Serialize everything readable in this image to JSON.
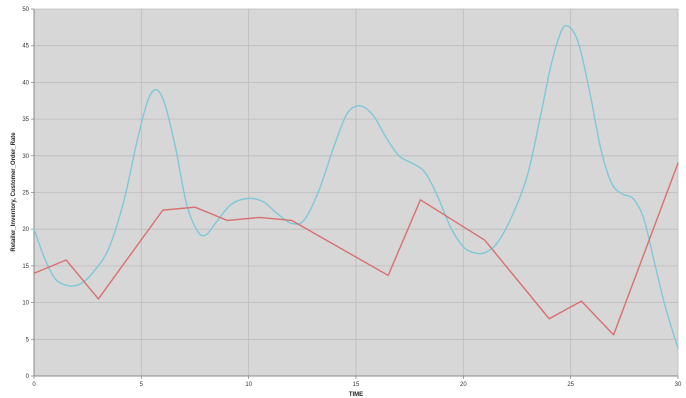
{
  "chart_data": {
    "type": "line",
    "title": "",
    "xlabel": "TIME",
    "ylabel": "Retailer_Inventory, Customer_Order_Rate",
    "xlim": [
      0,
      30
    ],
    "ylim": [
      0,
      50
    ],
    "x_ticks": [
      "0",
      "5",
      "10",
      "15",
      "20",
      "25",
      "30"
    ],
    "y_ticks": [
      "0",
      "5",
      "10",
      "15",
      "20",
      "25",
      "30",
      "35",
      "40",
      "45",
      "50"
    ],
    "grid": true,
    "legend": "none",
    "series": [
      {
        "color": "#7ec8d8",
        "smooth": true,
        "points": [
          [
            0,
            20
          ],
          [
            0.5,
            16
          ],
          [
            1,
            13.2
          ],
          [
            1.6,
            12.3
          ],
          [
            2.2,
            12.6
          ],
          [
            2.8,
            14.3
          ],
          [
            3.5,
            17.5
          ],
          [
            4.2,
            24
          ],
          [
            4.8,
            32
          ],
          [
            5.3,
            37.5
          ],
          [
            5.7,
            39
          ],
          [
            6.1,
            37
          ],
          [
            6.6,
            31
          ],
          [
            7.1,
            23.5
          ],
          [
            7.6,
            19.8
          ],
          [
            8.0,
            19.2
          ],
          [
            8.5,
            21
          ],
          [
            9.2,
            23.4
          ],
          [
            10.0,
            24.2
          ],
          [
            10.7,
            23.7
          ],
          [
            11.3,
            22.2
          ],
          [
            12.0,
            20.8
          ],
          [
            12.6,
            21.3
          ],
          [
            13.3,
            25.5
          ],
          [
            14.0,
            31.5
          ],
          [
            14.6,
            35.8
          ],
          [
            15.2,
            36.8
          ],
          [
            15.8,
            35.5
          ],
          [
            16.4,
            32.5
          ],
          [
            17.0,
            30
          ],
          [
            17.6,
            29
          ],
          [
            18.2,
            27.8
          ],
          [
            18.8,
            24.5
          ],
          [
            19.4,
            20.3
          ],
          [
            20.0,
            17.6
          ],
          [
            20.5,
            16.8
          ],
          [
            21.0,
            16.8
          ],
          [
            21.6,
            18.2
          ],
          [
            22.3,
            22
          ],
          [
            23.0,
            27.5
          ],
          [
            23.6,
            35.5
          ],
          [
            24.1,
            42.5
          ],
          [
            24.6,
            47.2
          ],
          [
            25.0,
            47.4
          ],
          [
            25.4,
            45
          ],
          [
            25.9,
            38.5
          ],
          [
            26.4,
            31
          ],
          [
            26.9,
            26.3
          ],
          [
            27.4,
            24.8
          ],
          [
            27.9,
            24.2
          ],
          [
            28.4,
            21.5
          ],
          [
            28.9,
            15.5
          ],
          [
            29.4,
            9.5
          ],
          [
            30.0,
            3.8
          ]
        ]
      },
      {
        "color": "#d97070",
        "smooth": false,
        "points": [
          [
            0,
            14
          ],
          [
            1.5,
            15.8
          ],
          [
            3.0,
            10.5
          ],
          [
            6.0,
            22.6
          ],
          [
            7.5,
            23
          ],
          [
            9.0,
            21.2
          ],
          [
            10.5,
            21.6
          ],
          [
            12.0,
            21.2
          ],
          [
            16.5,
            13.7
          ],
          [
            18.0,
            24
          ],
          [
            21.0,
            18.5
          ],
          [
            24.0,
            7.8
          ],
          [
            25.5,
            10.2
          ],
          [
            27.0,
            5.6
          ],
          [
            30.0,
            29
          ]
        ]
      }
    ]
  }
}
